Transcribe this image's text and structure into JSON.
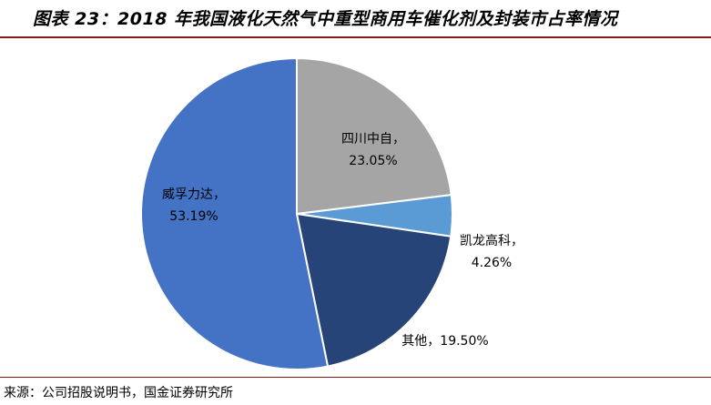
{
  "title": "图表 23：2018 年我国液化天然气中重型商用车催化剂及封装市占率情况",
  "source": "来源：公司招股说明书，国金证券研究所",
  "colors": {
    "rule": "#8b1a1a"
  },
  "chart_data": {
    "type": "pie",
    "title": "",
    "start": "12 o'clock",
    "direction": "clockwise",
    "slices": [
      {
        "name": "四川中自",
        "value": 23.05,
        "label": "23.05%",
        "color": "#a5a5a5"
      },
      {
        "name": "凯龙高科",
        "value": 4.26,
        "label": "4.26%",
        "color": "#5b9bd5"
      },
      {
        "name": "其他",
        "value": 19.5,
        "label": "19.50%",
        "color": "#264478"
      },
      {
        "name": "威孚力达",
        "value": 53.19,
        "label": "53.19%",
        "color": "#4472c4"
      }
    ]
  }
}
